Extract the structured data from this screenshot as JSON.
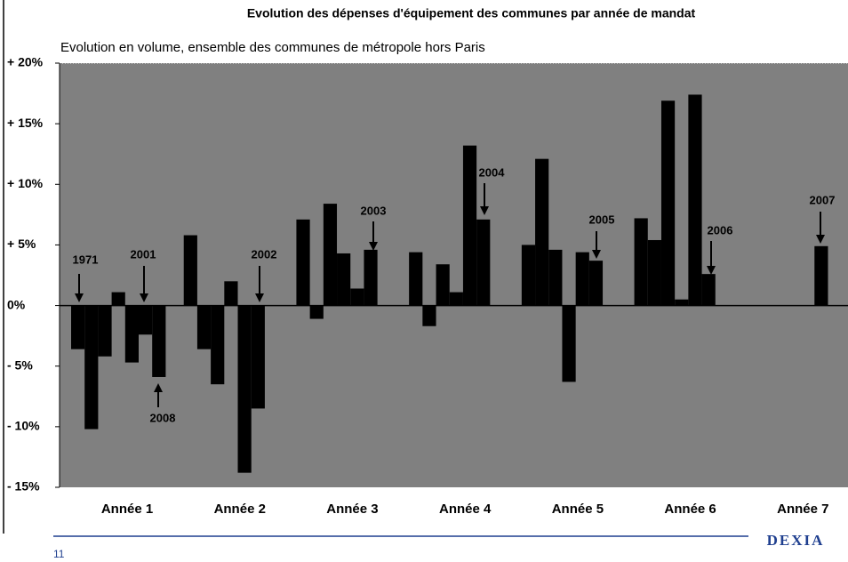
{
  "chart_data": {
    "type": "bar",
    "title": "Evolution des dépenses d'équipement des communes par année de mandat",
    "subtitle": "Evolution en volume, ensemble des communes de métropole hors Paris",
    "categories": [
      "Année 1",
      "Année 2",
      "Année 3",
      "Année 4",
      "Année 5",
      "Année 6",
      "Année 7"
    ],
    "series": [
      {
        "color": "#000000",
        "values": [
          -3.6,
          5.8,
          7.1,
          4.4,
          5.0,
          7.2,
          null
        ]
      },
      {
        "color": "#000000",
        "values": [
          -10.2,
          -3.6,
          -1.1,
          -1.7,
          12.1,
          5.4,
          null
        ]
      },
      {
        "color": "#000000",
        "values": [
          -4.2,
          -6.5,
          8.4,
          3.4,
          4.6,
          16.9,
          null
        ]
      },
      {
        "color": "#000000",
        "values": [
          1.1,
          2.0,
          4.3,
          1.1,
          -6.3,
          0.5,
          null
        ]
      },
      {
        "color": "#000000",
        "values": [
          -4.7,
          -13.8,
          1.4,
          13.2,
          4.4,
          17.4,
          null
        ]
      },
      {
        "color": "#000000",
        "values": [
          -2.4,
          -8.5,
          4.6,
          7.1,
          3.7,
          2.6,
          4.9
        ]
      },
      {
        "color": "#000000",
        "values": [
          -5.9,
          null,
          null,
          null,
          null,
          null,
          null
        ]
      }
    ],
    "ylim": [
      -15,
      20
    ],
    "yticks": [
      {
        "value": -15,
        "label": "- 15%"
      },
      {
        "value": -10,
        "label": "- 10%"
      },
      {
        "value": -5,
        "label": "- 5%"
      },
      {
        "value": 0,
        "label": "0%"
      },
      {
        "value": 5,
        "label": "+ 5%"
      },
      {
        "value": 10,
        "label": "+ 10%"
      },
      {
        "value": 15,
        "label": "+ 15%"
      },
      {
        "value": 20,
        "label": "+ 20%"
      }
    ],
    "background": "#808080",
    "annotations": [
      "1971",
      "2001",
      "2008",
      "2002",
      "2003",
      "2004",
      "2005",
      "2006",
      "2007"
    ]
  },
  "footer": {
    "page": "11",
    "logo": "DEXIA"
  }
}
